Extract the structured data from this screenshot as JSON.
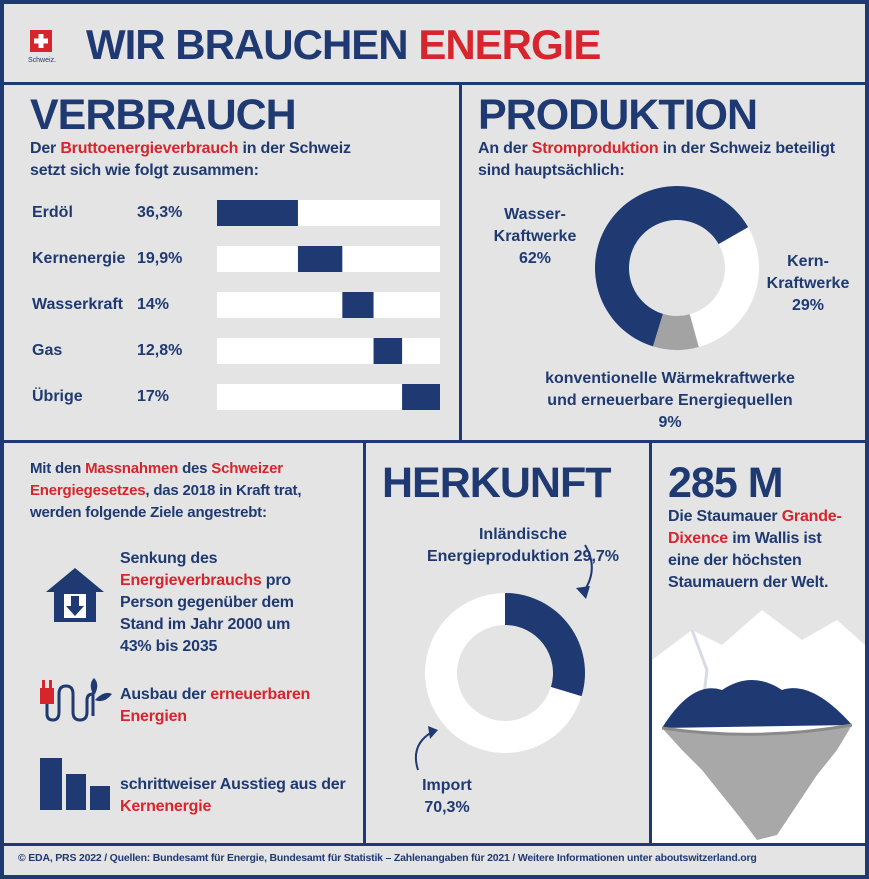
{
  "header": {
    "title": [
      "WIR BRAUCHEN ",
      "ENERGIE"
    ],
    "logo_text": "Schweiz."
  },
  "verbrauch": {
    "title": "VERBRAUCH",
    "text": [
      "Der ",
      "Bruttoenergieverbrauch",
      " in der Schweiz setzt sich wie folgt zusammen:"
    ]
  },
  "produktion": {
    "title": "PRODUKTION",
    "text": [
      "An der ",
      "Stromproduktion",
      " in der Schweiz beteiligt sind hauptsächlich:"
    ]
  },
  "ziele": {
    "intro": [
      "Mit den ",
      "Massnahmen",
      " des ",
      "Schweizer Energiegesetzes",
      ", das 2018 in Kraft trat, werden folgende Ziele angestrebt:"
    ],
    "items": [
      [
        "Senkung des ",
        "Energieverbrauchs",
        " pro Person gegenüber dem Stand im Jahr 2000 um 43% bis 2035"
      ],
      [
        "Ausbau der ",
        "erneuerbaren Energien"
      ],
      [
        "schrittweiser Ausstieg aus der ",
        "Kernenergie"
      ]
    ]
  },
  "herkunft": {
    "title": "HERKUNFT"
  },
  "staumauer": {
    "title": "285 M",
    "text": [
      "Die Staumauer ",
      "Grande-Dixence",
      " im Wallis ist eine der höchsten Staumauern der Welt."
    ]
  },
  "footer": "© EDA, PRS 2022 / Quellen: Bundesamt für Energie, Bundesamt für Statistik – Zahlenangaben für 2021 / Weitere Informationen unter aboutswitzerland.org",
  "chart_data": [
    {
      "type": "bar",
      "categories": [
        "Erdöl",
        "Kernenergie",
        "Wasserkraft",
        "Gas",
        "Übrige"
      ],
      "values": [
        36.3,
        19.9,
        14,
        12.8,
        17
      ],
      "value_labels": [
        "36,3%",
        "19,9%",
        "14%",
        "12,8%",
        "17%"
      ],
      "color": "#1f3a72"
    },
    {
      "type": "pie",
      "categories": [
        [
          "Wasser-",
          "Kraftwerke"
        ],
        [
          "Kern-",
          "Kraftwerke"
        ],
        [
          "konventionelle Wärmekraftwerke",
          "und erneuerbare Energiequellen"
        ]
      ],
      "values": [
        62,
        29,
        9
      ],
      "value_labels": [
        "62%",
        "29%",
        "9%"
      ],
      "colors": [
        "#1f3a72",
        "#ffffff",
        "#a3a3a3"
      ]
    },
    {
      "type": "pie",
      "categories": [
        [
          "Inländische",
          "Energieproduktion"
        ],
        [
          "Import"
        ]
      ],
      "values": [
        29.7,
        70.3
      ],
      "value_labels": [
        "29,7%",
        "70,3%"
      ],
      "colors": [
        "#1f3a72",
        "#ffffff"
      ]
    }
  ]
}
